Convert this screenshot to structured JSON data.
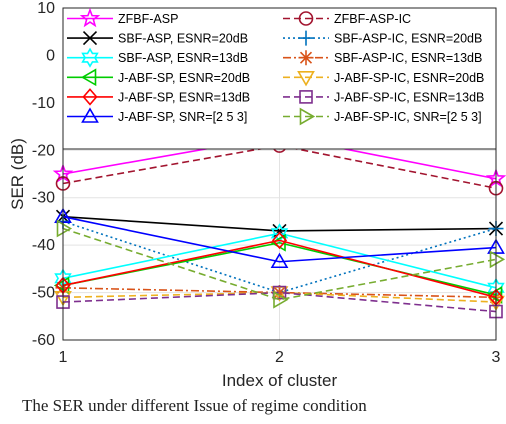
{
  "chart_data": {
    "type": "line",
    "xlabel": "Index of cluster",
    "ylabel": "SER (dB)",
    "xlim": [
      1,
      3
    ],
    "ylim": [
      -60,
      10
    ],
    "x_ticks": [
      "1",
      "2",
      "3"
    ],
    "y_ticks": [
      "10",
      "0",
      "-10",
      "-20",
      "-30",
      "-40",
      "-50",
      "-60"
    ],
    "grid": true,
    "legend_placement": "top",
    "x": [
      1,
      2,
      3
    ],
    "series": [
      {
        "name": "ZFBF-ASP",
        "values": [
          -25,
          -17,
          -26
        ],
        "color": "#ff00ff",
        "dash": "solid",
        "marker": "star"
      },
      {
        "name": "ZFBF-ASP-IC",
        "values": [
          -27,
          -19,
          -28
        ],
        "color": "#a2142f",
        "dash": "dashed",
        "marker": "circle"
      },
      {
        "name": "SBF-ASP, ESNR=20dB",
        "values": [
          -34,
          -37,
          -36.5
        ],
        "color": "#000000",
        "dash": "solid",
        "marker": "x"
      },
      {
        "name": "SBF-ASP-IC, ESNR=20dB",
        "values": [
          -35,
          -50,
          -36.5
        ],
        "color": "#0072bd",
        "dash": "dotted",
        "marker": "plus"
      },
      {
        "name": "SBF-ASP, ESNR=13dB",
        "values": [
          -47,
          -37.5,
          -49
        ],
        "color": "#00ffff",
        "dash": "solid",
        "marker": "hexagram"
      },
      {
        "name": "SBF-ASP-IC, ESNR=13dB",
        "values": [
          -49,
          -50,
          -51
        ],
        "color": "#d95319",
        "dash": "dashdot",
        "marker": "asterisk"
      },
      {
        "name": "J-ABF-SP, ESNR=20dB",
        "values": [
          -48.5,
          -39.5,
          -50.5
        ],
        "color": "#00cc00",
        "dash": "solid",
        "marker": "triangle-left"
      },
      {
        "name": "J-ABF-SP-IC, ESNR=20dB",
        "values": [
          -51,
          -50,
          -52
        ],
        "color": "#edb120",
        "dash": "dashed",
        "marker": "triangle-down"
      },
      {
        "name": "J-ABF-SP, ESNR=13dB",
        "values": [
          -48.5,
          -39,
          -51
        ],
        "color": "#ff0000",
        "dash": "solid",
        "marker": "diamond"
      },
      {
        "name": "J-ABF-SP-IC, ESNR=13dB",
        "values": [
          -52,
          -50,
          -54
        ],
        "color": "#7e2f8e",
        "dash": "dashed",
        "marker": "square"
      },
      {
        "name": "J-ABF-SP, SNR=[2 5 3]",
        "values": [
          -34,
          -43.5,
          -40.5
        ],
        "color": "#0000ff",
        "dash": "solid",
        "marker": "triangle-up"
      },
      {
        "name": "J-ABF-SP-IC, SNR=[2 5 3]",
        "values": [
          -36.5,
          -51.5,
          -43
        ],
        "color": "#77ac30",
        "dash": "dashed",
        "marker": "triangle-right"
      }
    ]
  },
  "caption": "The SER under different Issue of regime condition"
}
